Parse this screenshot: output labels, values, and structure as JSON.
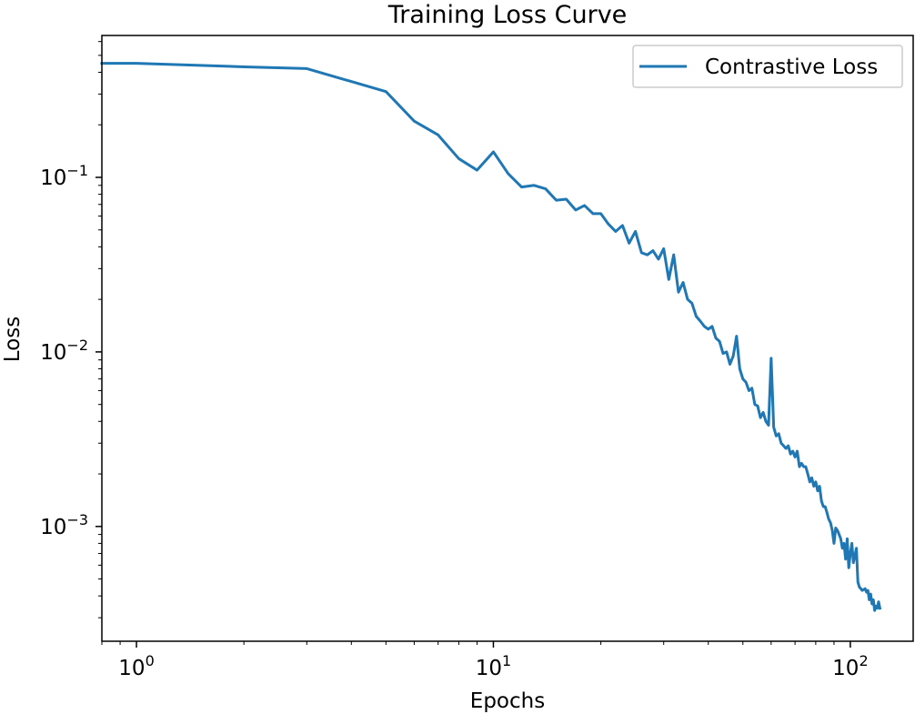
{
  "chart_data": {
    "type": "line",
    "title": "Training Loss Curve",
    "xlabel": "Epochs",
    "ylabel": "Loss",
    "xscale": "log",
    "yscale": "log",
    "xlim": [
      0.8,
      150
    ],
    "ylim": [
      0.00022,
      0.65
    ],
    "x_ticks": [
      {
        "value": 1,
        "base": "10",
        "exp": "0"
      },
      {
        "value": 10,
        "base": "10",
        "exp": "1"
      },
      {
        "value": 100,
        "base": "10",
        "exp": "2"
      }
    ],
    "y_ticks": [
      {
        "value": 0.001,
        "base": "10",
        "exp": "−3"
      },
      {
        "value": 0.01,
        "base": "10",
        "exp": "−2"
      },
      {
        "value": 0.1,
        "base": "10",
        "exp": "−1"
      }
    ],
    "grid": false,
    "legend": {
      "position": "top-right",
      "entries": [
        "Contrastive Loss"
      ]
    },
    "series": [
      {
        "name": "Contrastive Loss",
        "color": "#1f77b4",
        "points": [
          [
            0.8,
            0.45
          ],
          [
            1,
            0.45
          ],
          [
            2,
            0.43
          ],
          [
            3,
            0.42
          ],
          [
            5,
            0.31
          ],
          [
            6,
            0.21
          ],
          [
            7,
            0.175
          ],
          [
            8,
            0.128
          ],
          [
            9,
            0.11
          ],
          [
            10,
            0.14
          ],
          [
            11,
            0.105
          ],
          [
            12,
            0.088
          ],
          [
            13,
            0.09
          ],
          [
            14,
            0.086
          ],
          [
            15,
            0.074
          ],
          [
            16,
            0.075
          ],
          [
            17,
            0.065
          ],
          [
            18,
            0.069
          ],
          [
            19,
            0.062
          ],
          [
            20,
            0.062
          ],
          [
            21,
            0.054
          ],
          [
            22,
            0.049
          ],
          [
            23,
            0.053
          ],
          [
            24,
            0.042
          ],
          [
            25,
            0.049
          ],
          [
            26,
            0.037
          ],
          [
            27,
            0.036
          ],
          [
            28,
            0.038
          ],
          [
            29,
            0.034
          ],
          [
            30,
            0.039
          ],
          [
            31,
            0.026
          ],
          [
            32,
            0.036
          ],
          [
            33,
            0.022
          ],
          [
            34,
            0.025
          ],
          [
            35,
            0.02
          ],
          [
            36,
            0.019
          ],
          [
            37,
            0.016
          ],
          [
            38,
            0.015
          ],
          [
            39,
            0.014
          ],
          [
            40,
            0.0135
          ],
          [
            41,
            0.014
          ],
          [
            42,
            0.012
          ],
          [
            43,
            0.0115
          ],
          [
            44,
            0.0098
          ],
          [
            45,
            0.01
          ],
          [
            46,
            0.0085
          ],
          [
            47,
            0.0095
          ],
          [
            48,
            0.0123
          ],
          [
            49,
            0.008
          ],
          [
            50,
            0.007
          ],
          [
            51,
            0.0067
          ],
          [
            52,
            0.006
          ],
          [
            53,
            0.0062
          ],
          [
            54,
            0.005
          ],
          [
            55,
            0.0049
          ],
          [
            56,
            0.0042
          ],
          [
            57,
            0.0045
          ],
          [
            58,
            0.004
          ],
          [
            59,
            0.0038
          ],
          [
            60,
            0.0092
          ],
          [
            61,
            0.0037
          ],
          [
            62,
            0.0033
          ],
          [
            63,
            0.0034
          ],
          [
            64,
            0.003
          ],
          [
            65,
            0.0029
          ],
          [
            66,
            0.0028
          ],
          [
            67,
            0.0029
          ],
          [
            68,
            0.0026
          ],
          [
            69,
            0.0027
          ],
          [
            70,
            0.0025
          ],
          [
            71,
            0.0027
          ],
          [
            72,
            0.0022
          ],
          [
            73,
            0.0023
          ],
          [
            74,
            0.0022
          ],
          [
            75,
            0.0022
          ],
          [
            76,
            0.002
          ],
          [
            77,
            0.0018
          ],
          [
            78,
            0.0019
          ],
          [
            79,
            0.0017
          ],
          [
            80,
            0.0018
          ],
          [
            81,
            0.0016
          ],
          [
            82,
            0.0017
          ],
          [
            83,
            0.0014
          ],
          [
            84,
            0.0013
          ],
          [
            85,
            0.0013
          ],
          [
            86,
            0.0012
          ],
          [
            87,
            0.0011
          ],
          [
            88,
            0.00105
          ],
          [
            89,
            0.00095
          ],
          [
            90,
            0.0008
          ],
          [
            91,
            0.00098
          ],
          [
            92,
            0.00095
          ],
          [
            93,
            0.0009
          ],
          [
            94,
            0.00085
          ],
          [
            95,
            0.00075
          ],
          [
            96,
            0.0008
          ],
          [
            97,
            0.00065
          ],
          [
            98,
            0.00085
          ],
          [
            99,
            0.00058
          ],
          [
            100,
            0.0007
          ],
          [
            101,
            0.0008
          ],
          [
            102,
            0.00062
          ],
          [
            103,
            0.00068
          ],
          [
            104,
            0.00075
          ],
          [
            105,
            0.00048
          ],
          [
            106,
            0.00045
          ],
          [
            108,
            0.00043
          ],
          [
            110,
            0.00044
          ],
          [
            111,
            0.00042
          ],
          [
            112,
            0.00043
          ],
          [
            113,
            0.00038
          ],
          [
            114,
            0.00041
          ],
          [
            115,
            0.00036
          ],
          [
            116,
            0.00038
          ],
          [
            117,
            0.00033
          ],
          [
            118,
            0.00035
          ],
          [
            119,
            0.00034
          ],
          [
            120,
            0.00037
          ],
          [
            121,
            0.00034
          ]
        ]
      }
    ]
  }
}
